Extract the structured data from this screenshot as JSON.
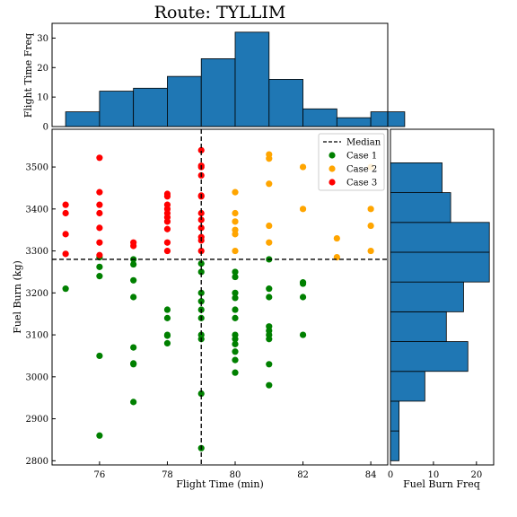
{
  "chart_data": {
    "title": "Route: TYLLIM",
    "type": "scatter",
    "scatter": {
      "xlabel": "Flight Time (min)",
      "ylabel": "Fuel Burn (kg)",
      "xlim": [
        74.6,
        84.5
      ],
      "ylim": [
        2790,
        3590
      ],
      "xticks": [
        76,
        78,
        80,
        82,
        84
      ],
      "yticks": [
        2800,
        2900,
        3000,
        3100,
        3200,
        3300,
        3400,
        3500
      ],
      "median_x": 79,
      "median_y": 3280,
      "legend": [
        "Median",
        "Case 1",
        "Case 2",
        "Case 3"
      ],
      "legend_position": "top-right",
      "series": [
        {
          "name": "Case 1",
          "color": "#008000",
          "points": [
            [
              75,
              3210
            ],
            [
              76,
              3285
            ],
            [
              76,
              3262
            ],
            [
              76,
              3240
            ],
            [
              76,
              3050
            ],
            [
              76,
              2860
            ],
            [
              77,
              3280
            ],
            [
              77,
              3268
            ],
            [
              77,
              3230
            ],
            [
              77,
              3190
            ],
            [
              77,
              3070
            ],
            [
              77,
              3030
            ],
            [
              77,
              3032
            ],
            [
              77,
              2940
            ],
            [
              78,
              3160
            ],
            [
              78,
              3140
            ],
            [
              78,
              3100
            ],
            [
              78,
              3098
            ],
            [
              78,
              3080
            ],
            [
              79,
              3270
            ],
            [
              79,
              3250
            ],
            [
              79,
              3200
            ],
            [
              79,
              3180
            ],
            [
              79,
              3160
            ],
            [
              79,
              3140
            ],
            [
              79,
              3100
            ],
            [
              79,
              3090
            ],
            [
              79,
              2960
            ],
            [
              79,
              2830
            ],
            [
              80,
              3250
            ],
            [
              80,
              3238
            ],
            [
              80,
              3200
            ],
            [
              80,
              3188
            ],
            [
              80,
              3160
            ],
            [
              80,
              3140
            ],
            [
              80,
              3100
            ],
            [
              80,
              3090
            ],
            [
              80,
              3078
            ],
            [
              80,
              3060
            ],
            [
              80,
              3040
            ],
            [
              80,
              3010
            ],
            [
              81,
              3280
            ],
            [
              81,
              3210
            ],
            [
              81,
              3190
            ],
            [
              81,
              3120
            ],
            [
              81,
              3110
            ],
            [
              81,
              3100
            ],
            [
              81,
              3090
            ],
            [
              81,
              3030
            ],
            [
              81,
              2980
            ],
            [
              82,
              3225
            ],
            [
              82,
              3222
            ],
            [
              82,
              3190
            ],
            [
              82,
              3100
            ]
          ]
        },
        {
          "name": "Case 2",
          "color": "#ffa500",
          "points": [
            [
              80,
              3440
            ],
            [
              80,
              3390
            ],
            [
              80,
              3370
            ],
            [
              80,
              3350
            ],
            [
              80,
              3340
            ],
            [
              80,
              3300
            ],
            [
              81,
              3530
            ],
            [
              81,
              3520
            ],
            [
              81,
              3460
            ],
            [
              81,
              3360
            ],
            [
              81,
              3320
            ],
            [
              82,
              3500
            ],
            [
              82,
              3400
            ],
            [
              83,
              3330
            ],
            [
              83,
              3285
            ],
            [
              84,
              3500
            ],
            [
              84,
              3400
            ],
            [
              84,
              3360
            ],
            [
              84,
              3300
            ]
          ]
        },
        {
          "name": "Case 3",
          "color": "#ff0000",
          "points": [
            [
              75,
              3410
            ],
            [
              75,
              3390
            ],
            [
              75,
              3340
            ],
            [
              75,
              3293
            ],
            [
              76,
              3522
            ],
            [
              76,
              3440
            ],
            [
              76,
              3410
            ],
            [
              76,
              3390
            ],
            [
              76,
              3355
            ],
            [
              76,
              3320
            ],
            [
              76,
              3290
            ],
            [
              77,
              3320
            ],
            [
              77,
              3312
            ],
            [
              78,
              3436
            ],
            [
              78,
              3430
            ],
            [
              78,
              3410
            ],
            [
              78,
              3400
            ],
            [
              78,
              3390
            ],
            [
              78,
              3380
            ],
            [
              78,
              3370
            ],
            [
              78,
              3352
            ],
            [
              78,
              3320
            ],
            [
              78,
              3300
            ],
            [
              79,
              3540
            ],
            [
              79,
              3503
            ],
            [
              79,
              3500
            ],
            [
              79,
              3480
            ],
            [
              79,
              3432
            ],
            [
              79,
              3430
            ],
            [
              79,
              3390
            ],
            [
              79,
              3374
            ],
            [
              79,
              3355
            ],
            [
              79,
              3333
            ],
            [
              79,
              3325
            ],
            [
              79,
              3300
            ]
          ]
        }
      ]
    },
    "top_hist": {
      "type": "bar",
      "ylabel": "Flight Time Freq",
      "bins": [
        75,
        76,
        77,
        78,
        79,
        80,
        81,
        82,
        83,
        84,
        85
      ],
      "counts": [
        5,
        12,
        13,
        17,
        23,
        32,
        16,
        6,
        3,
        5
      ],
      "ylim": [
        0,
        35
      ],
      "yticks": [
        0,
        10,
        20,
        30
      ]
    },
    "right_hist": {
      "type": "bar",
      "xlabel": "Fuel Burn Freq",
      "bins": [
        2800,
        2871,
        2942,
        3013,
        3084,
        3155,
        3226,
        3297,
        3368,
        3439,
        3510
      ],
      "counts": [
        2,
        2,
        8,
        18,
        13,
        17,
        23,
        23,
        14,
        12
      ],
      "xlim": [
        0,
        24
      ],
      "xticks": [
        0,
        10,
        20
      ]
    }
  }
}
